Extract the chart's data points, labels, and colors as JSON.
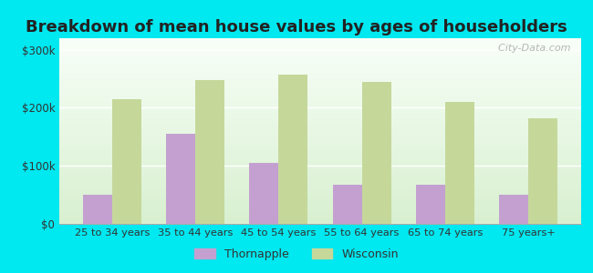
{
  "title": "Breakdown of mean house values by ages of householders",
  "categories": [
    "25 to 34 years",
    "35 to 44 years",
    "45 to 54 years",
    "55 to 64 years",
    "65 to 74 years",
    "75 years+"
  ],
  "thornapple_values": [
    50000,
    155000,
    105000,
    68000,
    68000,
    50000
  ],
  "wisconsin_values": [
    215000,
    248000,
    258000,
    245000,
    210000,
    182000
  ],
  "thornapple_color": "#c4a0d0",
  "wisconsin_color": "#c5d89a",
  "background_outer": "#00e8f0",
  "title_fontsize": 13,
  "ylabel_ticks": [
    0,
    100000,
    200000,
    300000
  ],
  "ylim": [
    0,
    320000
  ],
  "bar_width": 0.35,
  "legend_labels": [
    "Thornapple",
    "Wisconsin"
  ],
  "watermark": "  City-Data.com"
}
